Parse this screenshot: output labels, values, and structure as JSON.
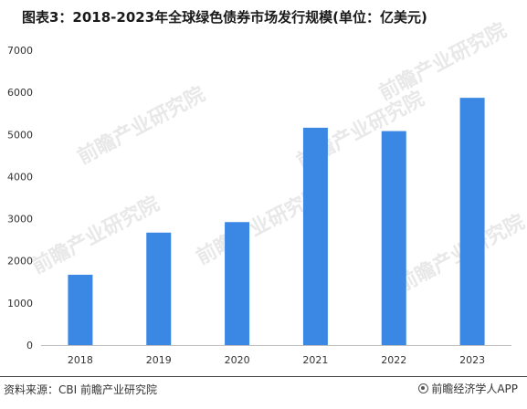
{
  "title": "图表3：2018-2023年全球绿色债券市场发行规模(单位：亿美元)",
  "source": "资料来源：CBI 前瞻产业研究院",
  "brand": "前瞻经济学人APP",
  "watermark": "前瞻产业研究院",
  "colors": {
    "bar": "#3a87e4",
    "axis": "#bfbfbf",
    "text": "#333333"
  },
  "chart_data": {
    "type": "bar",
    "categories": [
      "2018",
      "2019",
      "2020",
      "2021",
      "2022",
      "2023"
    ],
    "values": [
      1670,
      2670,
      2920,
      5160,
      5080,
      5870
    ],
    "title": "图表3：2018-2023年全球绿色债券市场发行规模(单位：亿美元)",
    "xlabel": "",
    "ylabel": "",
    "ylim": [
      0,
      7000
    ],
    "yticks": [
      0,
      1000,
      2000,
      3000,
      4000,
      5000,
      6000,
      7000
    ],
    "grid": false,
    "legend": "none"
  }
}
